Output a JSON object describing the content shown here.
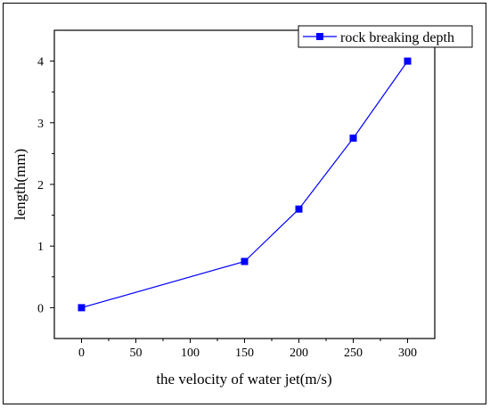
{
  "chart_data": {
    "type": "line",
    "title": "",
    "xlabel": "the velocity of water jet(m/s)",
    "ylabel": "length(mm)",
    "xlim": [
      -25,
      325
    ],
    "ylim": [
      -0.5,
      4.5
    ],
    "x_ticks": [
      0,
      50,
      100,
      150,
      200,
      250,
      300
    ],
    "y_ticks": [
      0,
      1,
      2,
      3,
      4
    ],
    "x_tick_labels": [
      "0",
      "50",
      "100",
      "150",
      "200",
      "250",
      "300"
    ],
    "y_tick_labels": [
      "0",
      "1",
      "2",
      "3",
      "4"
    ],
    "grid": false,
    "legend_position": "top-right",
    "series": [
      {
        "name": "rock breaking depth",
        "color": "#0000ff",
        "marker": "square",
        "x": [
          0,
          150,
          200,
          250,
          300
        ],
        "y": [
          0,
          0.75,
          1.6,
          2.75,
          4.0
        ]
      }
    ]
  }
}
